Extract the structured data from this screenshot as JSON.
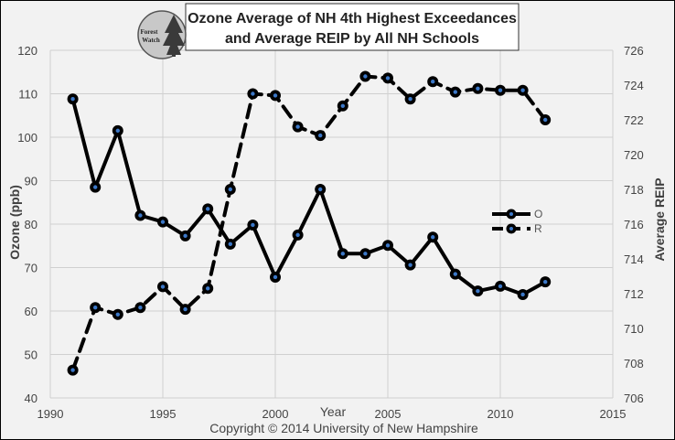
{
  "chart_data": {
    "type": "line",
    "title_line1": "Ozone Average of NH 4th Highest Exceedances",
    "title_line2": "and Average REIP by All NH Schools",
    "xlabel": "Year",
    "ylabel_left": "Ozone (ppb)",
    "ylabel_right": "Average REIP",
    "xlim": [
      1990,
      2015
    ],
    "x_ticks": [
      "1990",
      "1995",
      "2000",
      "2005",
      "2010",
      "2015"
    ],
    "ylim_left": [
      40,
      120
    ],
    "y_ticks_left": [
      "40",
      "50",
      "60",
      "70",
      "80",
      "90",
      "100",
      "110",
      "120"
    ],
    "ylim_right": [
      706,
      726
    ],
    "y_ticks_right": [
      "706",
      "708",
      "710",
      "712",
      "714",
      "716",
      "718",
      "720",
      "722",
      "724",
      "726"
    ],
    "series": [
      {
        "name": "O",
        "axis": "left",
        "style": "solid",
        "x": [
          1991,
          1992,
          1993,
          1994,
          1995,
          1996,
          1997,
          1998,
          1999,
          2000,
          2001,
          2002,
          2003,
          2004,
          2005,
          2006,
          2007,
          2008,
          2009,
          2010,
          2011,
          2012
        ],
        "values": [
          108.8,
          88.5,
          101.5,
          82,
          80.5,
          77.3,
          83.5,
          75.4,
          79.8,
          67.8,
          77.5,
          88,
          73.2,
          73.2,
          75.1,
          70.6,
          77,
          68.5,
          64.6,
          65.7,
          63.8,
          66.7
        ]
      },
      {
        "name": "R",
        "axis": "right",
        "style": "dashed",
        "x": [
          1991,
          1992,
          1993,
          1994,
          1995,
          1996,
          1997,
          1998,
          1999,
          2000,
          2001,
          2002,
          2003,
          2004,
          2005,
          2006,
          2007,
          2008,
          2009,
          2010,
          2011,
          2012
        ],
        "values": [
          707.6,
          711.2,
          710.8,
          711.2,
          712.4,
          711.1,
          712.3,
          718,
          723.5,
          723.4,
          721.6,
          721.1,
          722.8,
          724.5,
          724.4,
          723.2,
          724.2,
          723.6,
          723.8,
          723.7,
          723.7,
          722
        ]
      }
    ],
    "legend": {
      "position": "right",
      "entries": [
        "O",
        "R"
      ]
    },
    "grid": true
  },
  "logo": {
    "line1": "Forest",
    "line2": "Watch"
  },
  "copyright": "Copyright © 2014 University of New Hampshire",
  "colors": {
    "background": "#f2f2f2",
    "grid": "#d0d0d0",
    "series": "#000000",
    "marker_center": "#3c78c8"
  }
}
